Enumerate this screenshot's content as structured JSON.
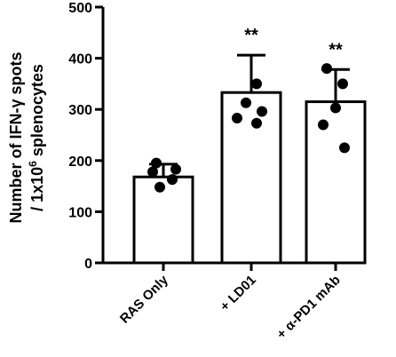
{
  "chart_data": {
    "type": "bar",
    "ylabel": "Number of IFN-γ spots",
    "ylabel_line2": "/ 1x10",
    "ylabel_superscript": "6",
    "ylabel_line2_suffix": " splenocytes",
    "ylim": [
      0,
      500
    ],
    "yticks": [
      0,
      100,
      200,
      300,
      400,
      500
    ],
    "ytick_labels": [
      "0",
      "100",
      "200",
      "300",
      "400",
      "500"
    ],
    "categories": [
      "RAS Only",
      "+ LD01",
      "+ α-PD1 mAb"
    ],
    "values": [
      168,
      333,
      315
    ],
    "error": [
      25,
      73,
      63
    ],
    "points": [
      [
        195,
        183,
        178,
        163,
        148
      ],
      [
        350,
        313,
        296,
        283,
        273
      ],
      [
        380,
        350,
        303,
        270,
        225
      ]
    ],
    "significance": [
      "",
      "**",
      "**"
    ],
    "bar_color": "#ffffff",
    "point_color": "#000000"
  }
}
